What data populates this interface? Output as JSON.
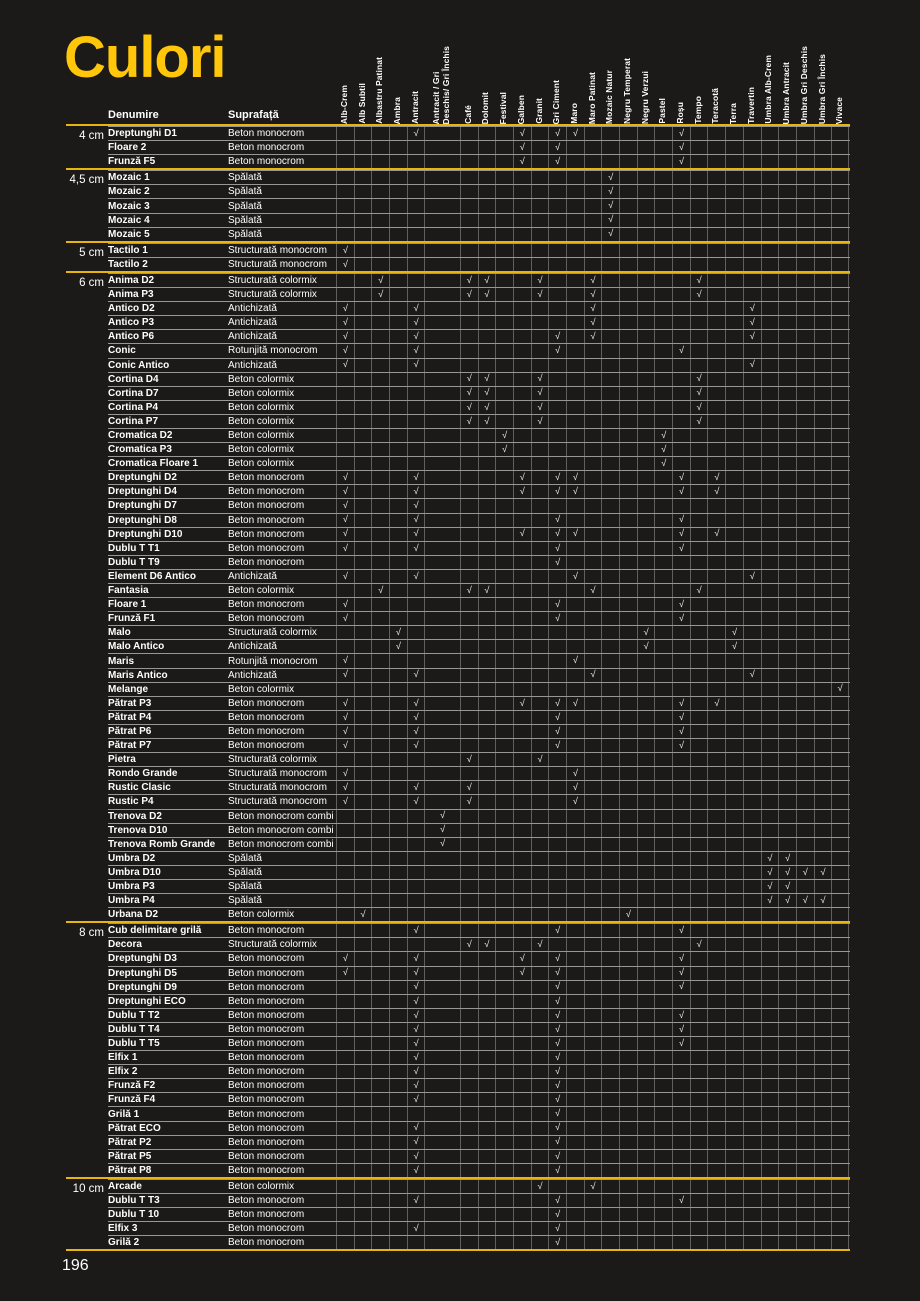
{
  "page": {
    "title": "Culori",
    "page_number": "196"
  },
  "colors": {
    "accent_yellow": "#e7b50c",
    "title_yellow": "#ffc60a",
    "background": "#1c1a19",
    "text": "#ffffff"
  },
  "check_glyph": "√",
  "table": {
    "header": {
      "name": "Denumire",
      "surface": "Suprafață"
    },
    "wide_column_index": 6,
    "columns": [
      "Alb-Crem",
      "Alb Subtil",
      "Albastru Patinat",
      "Ambra",
      "Antracit",
      "Antracit / Gri\nDeschis/ Gri Închis",
      "Café",
      "Dolomit",
      "Festival",
      "Galben",
      "Granit",
      "Gri Ciment",
      "Maro",
      "Maro Patinat",
      "Mozaic Natur",
      "Negru Temperat",
      "Negru Verzui",
      "Pastel",
      "Roșu",
      "Tempo",
      "Teracotă",
      "Terra",
      "Travertin",
      "Umbra Alb-Crem",
      "Umbra Antracit",
      "Umbra Gri Deschis",
      "Umbra Gri Închis",
      "Vivace"
    ],
    "groups": [
      {
        "size": "4 cm",
        "rows": [
          {
            "name": "Dreptunghi D1",
            "surface": "Beton monocrom",
            "checks": [
              5,
              10,
              12,
              13,
              19
            ]
          },
          {
            "name": "Floare 2",
            "surface": "Beton monocrom",
            "checks": [
              10,
              12,
              19
            ]
          },
          {
            "name": "Frunză F5",
            "surface": "Beton monocrom",
            "checks": [
              10,
              12,
              19
            ]
          }
        ]
      },
      {
        "size": "4,5 cm",
        "rows": [
          {
            "name": "Mozaic 1",
            "surface": "Spălată",
            "checks": [
              15
            ]
          },
          {
            "name": "Mozaic 2",
            "surface": "Spălată",
            "checks": [
              15
            ]
          },
          {
            "name": "Mozaic 3",
            "surface": "Spălată",
            "checks": [
              15
            ]
          },
          {
            "name": "Mozaic 4",
            "surface": "Spălată",
            "checks": [
              15
            ]
          },
          {
            "name": "Mozaic 5",
            "surface": "Spălată",
            "checks": [
              15
            ]
          }
        ]
      },
      {
        "size": "5 cm",
        "rows": [
          {
            "name": "Tactilo 1",
            "surface": "Structurată monocrom",
            "checks": [
              1
            ]
          },
          {
            "name": "Tactilo 2",
            "surface": "Structurată monocrom",
            "checks": [
              1
            ]
          }
        ]
      },
      {
        "size": "6 cm",
        "rows": [
          {
            "name": "Anima D2",
            "surface": "Structurată colormix",
            "checks": [
              3,
              7,
              8,
              11,
              14,
              20
            ]
          },
          {
            "name": "Anima P3",
            "surface": "Structurată colormix",
            "checks": [
              3,
              7,
              8,
              11,
              14,
              20
            ]
          },
          {
            "name": "Antico D2",
            "surface": "Antichizată",
            "checks": [
              1,
              5,
              14,
              23
            ]
          },
          {
            "name": "Antico P3",
            "surface": "Antichizată",
            "checks": [
              1,
              5,
              14,
              23
            ]
          },
          {
            "name": "Antico P6",
            "surface": "Antichizată",
            "checks": [
              1,
              5,
              12,
              14,
              23
            ]
          },
          {
            "name": "Conic",
            "surface": "Rotunjită monocrom",
            "checks": [
              1,
              5,
              12,
              19
            ]
          },
          {
            "name": "Conic Antico",
            "surface": "Antichizată",
            "checks": [
              1,
              5,
              23
            ]
          },
          {
            "name": "Cortina D4",
            "surface": "Beton colormix",
            "checks": [
              7,
              8,
              11,
              20
            ]
          },
          {
            "name": "Cortina D7",
            "surface": "Beton colormix",
            "checks": [
              7,
              8,
              11,
              20
            ]
          },
          {
            "name": "Cortina P4",
            "surface": "Beton colormix",
            "checks": [
              7,
              8,
              11,
              20
            ]
          },
          {
            "name": "Cortina P7",
            "surface": "Beton colormix",
            "checks": [
              7,
              8,
              11,
              20
            ]
          },
          {
            "name": "Cromatica D2",
            "surface": "Beton colormix",
            "checks": [
              9,
              18
            ]
          },
          {
            "name": "Cromatica P3",
            "surface": "Beton colormix",
            "checks": [
              9,
              18
            ]
          },
          {
            "name": "Cromatica Floare 1",
            "surface": "Beton colormix",
            "checks": [
              18
            ]
          },
          {
            "name": "Dreptunghi D2",
            "surface": "Beton monocrom",
            "checks": [
              1,
              5,
              10,
              12,
              13,
              19,
              21
            ]
          },
          {
            "name": "Dreptunghi D4",
            "surface": "Beton monocrom",
            "checks": [
              1,
              5,
              10,
              12,
              13,
              19,
              21
            ]
          },
          {
            "name": "Dreptunghi D7",
            "surface": "Beton monocrom",
            "checks": [
              1,
              5
            ]
          },
          {
            "name": "Dreptunghi D8",
            "surface": "Beton monocrom",
            "checks": [
              1,
              5,
              12,
              19
            ]
          },
          {
            "name": "Dreptunghi D10",
            "surface": "Beton monocrom",
            "checks": [
              1,
              5,
              10,
              12,
              13,
              19,
              21
            ]
          },
          {
            "name": "Dublu T T1",
            "surface": "Beton monocrom",
            "checks": [
              1,
              5,
              12,
              19
            ]
          },
          {
            "name": "Dublu T T9",
            "surface": "Beton monocrom",
            "checks": [
              12
            ]
          },
          {
            "name": "Element D6 Antico",
            "surface": "Antichizată",
            "checks": [
              1,
              5,
              13,
              23
            ]
          },
          {
            "name": "Fantasia",
            "surface": "Beton colormix",
            "checks": [
              3,
              7,
              8,
              14,
              20
            ]
          },
          {
            "name": "Floare 1",
            "surface": "Beton monocrom",
            "checks": [
              1,
              12,
              19
            ]
          },
          {
            "name": "Frunză F1",
            "surface": "Beton monocrom",
            "checks": [
              1,
              12,
              19
            ]
          },
          {
            "name": "Malo",
            "surface": "Structurată colormix",
            "checks": [
              4,
              17,
              22
            ]
          },
          {
            "name": "Malo Antico",
            "surface": "Antichizată",
            "checks": [
              4,
              17,
              22
            ]
          },
          {
            "name": "Maris",
            "surface": "Rotunjită monocrom",
            "checks": [
              1,
              13
            ]
          },
          {
            "name": "Maris Antico",
            "surface": "Antichizată",
            "checks": [
              1,
              5,
              14,
              23
            ]
          },
          {
            "name": "Melange",
            "surface": "Beton colormix",
            "checks": [
              28
            ]
          },
          {
            "name": "Pătrat P3",
            "surface": "Beton monocrom",
            "checks": [
              1,
              5,
              10,
              12,
              13,
              19,
              21
            ]
          },
          {
            "name": "Pătrat P4",
            "surface": "Beton monocrom",
            "checks": [
              1,
              5,
              12,
              19
            ]
          },
          {
            "name": "Pătrat P6",
            "surface": "Beton monocrom",
            "checks": [
              1,
              5,
              12,
              19
            ]
          },
          {
            "name": "Pătrat P7",
            "surface": "Beton monocrom",
            "checks": [
              1,
              5,
              12,
              19
            ]
          },
          {
            "name": "Pietra",
            "surface": "Structurată colormix",
            "checks": [
              7,
              11
            ]
          },
          {
            "name": "Rondo Grande",
            "surface": "Structurată monocrom",
            "checks": [
              1,
              13
            ]
          },
          {
            "name": "Rustic Clasic",
            "surface": "Structurată monocrom",
            "checks": [
              1,
              5,
              7,
              13
            ]
          },
          {
            "name": "Rustic P4",
            "surface": "Structurată monocrom",
            "checks": [
              1,
              5,
              7,
              13
            ]
          },
          {
            "name": "Trenova D2",
            "surface": "Beton monocrom combi",
            "checks": [
              6
            ]
          },
          {
            "name": "Trenova D10",
            "surface": "Beton monocrom combi",
            "checks": [
              6
            ]
          },
          {
            "name": "Trenova Romb Grande",
            "surface": "Beton monocrom combi",
            "checks": [
              6
            ]
          },
          {
            "name": "Umbra D2",
            "surface": "Spălată",
            "checks": [
              24,
              25
            ]
          },
          {
            "name": "Umbra D10",
            "surface": "Spălată",
            "checks": [
              24,
              25,
              26,
              27
            ]
          },
          {
            "name": "Umbra P3",
            "surface": "Spălată",
            "checks": [
              24,
              25
            ]
          },
          {
            "name": "Umbra P4",
            "surface": "Spălată",
            "checks": [
              24,
              25,
              26,
              27
            ]
          },
          {
            "name": "Urbana D2",
            "surface": "Beton colormix",
            "checks": [
              2,
              16
            ]
          }
        ]
      },
      {
        "size": "8 cm",
        "rows": [
          {
            "name": "Cub delimitare grilă",
            "surface": "Beton monocrom",
            "checks": [
              5,
              12,
              19
            ]
          },
          {
            "name": "Decora",
            "surface": "Structurată colormix",
            "checks": [
              7,
              8,
              11,
              20
            ]
          },
          {
            "name": "Dreptunghi D3",
            "surface": "Beton monocrom",
            "checks": [
              1,
              5,
              10,
              12,
              19
            ]
          },
          {
            "name": "Dreptunghi D5",
            "surface": "Beton monocrom",
            "checks": [
              1,
              5,
              10,
              12,
              19
            ]
          },
          {
            "name": "Dreptunghi D9",
            "surface": "Beton monocrom",
            "checks": [
              5,
              12,
              19
            ]
          },
          {
            "name": "Dreptunghi ECO",
            "surface": "Beton monocrom",
            "checks": [
              5,
              12
            ]
          },
          {
            "name": "Dublu T T2",
            "surface": "Beton monocrom",
            "checks": [
              5,
              12,
              19
            ]
          },
          {
            "name": "Dublu T T4",
            "surface": "Beton monocrom",
            "checks": [
              5,
              12,
              19
            ]
          },
          {
            "name": "Dublu T T5",
            "surface": "Beton monocrom",
            "checks": [
              5,
              12,
              19
            ]
          },
          {
            "name": "Elfix 1",
            "surface": "Beton monocrom",
            "checks": [
              5,
              12
            ]
          },
          {
            "name": "Elfix 2",
            "surface": "Beton monocrom",
            "checks": [
              5,
              12
            ]
          },
          {
            "name": "Frunză F2",
            "surface": "Beton monocrom",
            "checks": [
              5,
              12
            ]
          },
          {
            "name": "Frunză F4",
            "surface": "Beton monocrom",
            "checks": [
              5,
              12
            ]
          },
          {
            "name": "Grilă 1",
            "surface": "Beton monocrom",
            "checks": [
              12
            ]
          },
          {
            "name": "Pătrat ECO",
            "surface": "Beton monocrom",
            "checks": [
              5,
              12
            ]
          },
          {
            "name": "Pătrat P2",
            "surface": "Beton monocrom",
            "checks": [
              5,
              12
            ]
          },
          {
            "name": "Pătrat P5",
            "surface": "Beton monocrom",
            "checks": [
              5,
              12
            ]
          },
          {
            "name": "Pătrat P8",
            "surface": "Beton monocrom",
            "checks": [
              5,
              12
            ]
          }
        ]
      },
      {
        "size": "10 cm",
        "rows": [
          {
            "name": "Arcade",
            "surface": "Beton colormix",
            "checks": [
              11,
              14
            ]
          },
          {
            "name": "Dublu T T3",
            "surface": "Beton monocrom",
            "checks": [
              5,
              12,
              19
            ]
          },
          {
            "name": "Dublu T 10",
            "surface": "Beton monocrom",
            "checks": [
              12
            ]
          },
          {
            "name": "Elfix 3",
            "surface": "Beton monocrom",
            "checks": [
              5,
              12
            ]
          },
          {
            "name": "Grilă 2",
            "surface": "Beton monocrom",
            "checks": [
              12
            ]
          }
        ]
      }
    ]
  }
}
